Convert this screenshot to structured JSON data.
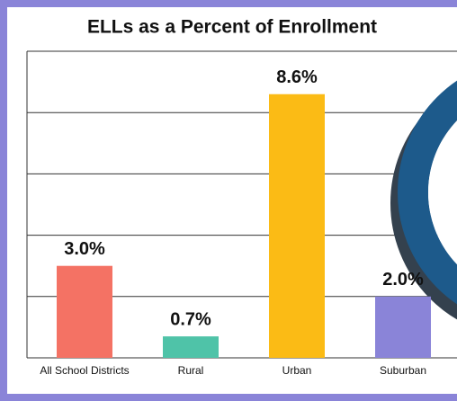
{
  "chart_data": {
    "type": "bar",
    "title": "ELLs as a Percent of Enrollment",
    "categories": [
      "All School Districts",
      "Rural",
      "Urban",
      "Suburban"
    ],
    "values": [
      3.0,
      0.7,
      8.6,
      2.0
    ],
    "value_labels": [
      "3.0%",
      "0.7%",
      "8.6%",
      "2.0%"
    ],
    "colors": [
      "#f47264",
      "#4fc3a8",
      "#fbbb15",
      "#8a84d8"
    ],
    "ylim": [
      0,
      10
    ],
    "yticks": [
      0,
      2,
      4,
      6,
      8,
      10
    ],
    "grid": true
  }
}
